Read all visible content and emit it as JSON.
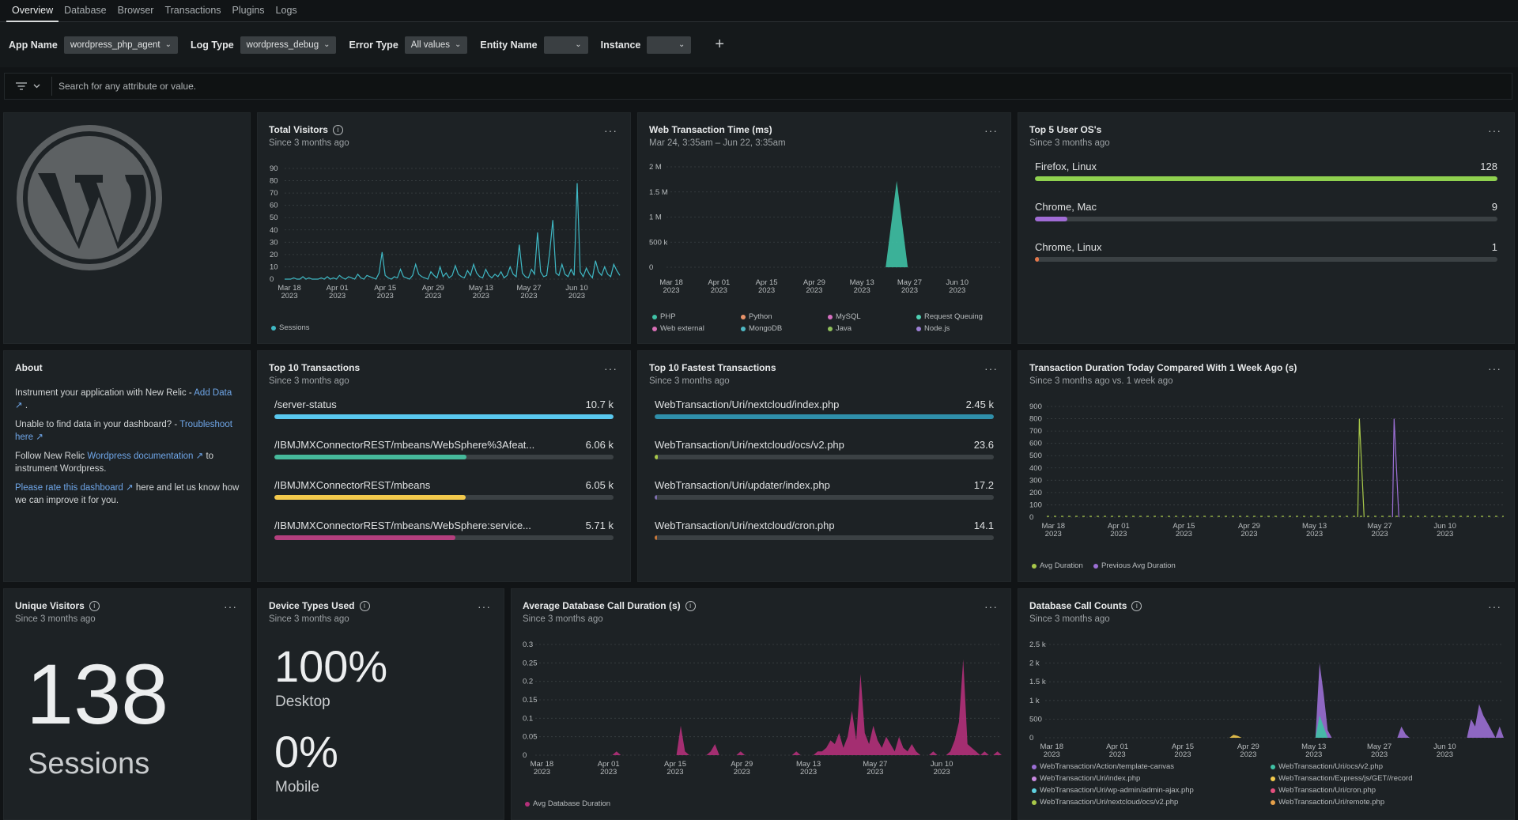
{
  "tabs": [
    "Overview",
    "Database",
    "Browser",
    "Transactions",
    "Plugins",
    "Logs"
  ],
  "filters": [
    {
      "label": "App Name",
      "value": "wordpress_php_agent"
    },
    {
      "label": "Log Type",
      "value": "wordpress_debug"
    },
    {
      "label": "Error Type",
      "value": "All values"
    },
    {
      "label": "Entity Name",
      "value": ""
    },
    {
      "label": "Instance",
      "value": ""
    }
  ],
  "search": {
    "placeholder": "Search for any attribute or value."
  },
  "icons": {
    "logo": "wordpress-logo-icon",
    "filter": "filter-icon",
    "add": "plus-icon"
  },
  "total_visitors": {
    "title": "Total Visitors",
    "subtitle": "Since 3 months ago",
    "chart_data": {
      "type": "line",
      "y_ticks": [
        0,
        10,
        20,
        30,
        40,
        50,
        60,
        70,
        80,
        90
      ],
      "ylim": [
        0,
        90
      ],
      "x_ticks": [
        "Mar 18, 2023",
        "Apr 01, 2023",
        "Apr 15, 2023",
        "Apr 29, 2023",
        "May 13, 2023",
        "May 27, 2023",
        "Jun 10, 2023"
      ],
      "series": [
        {
          "name": "Sessions",
          "color": "#3fb8c4",
          "values": [
            0,
            0,
            0,
            1,
            0,
            0,
            2,
            0,
            1,
            0,
            0,
            0,
            1,
            0,
            2,
            0,
            1,
            0,
            3,
            1,
            0,
            2,
            1,
            0,
            4,
            1,
            0,
            3,
            2,
            1,
            0,
            5,
            22,
            3,
            1,
            0,
            2,
            1,
            8,
            2,
            1,
            0,
            3,
            12,
            4,
            2,
            1,
            0,
            6,
            3,
            1,
            10,
            2,
            5,
            1,
            3,
            11,
            4,
            2,
            1,
            7,
            3,
            12,
            5,
            2,
            1,
            8,
            3,
            1,
            4,
            2,
            6,
            1,
            3,
            10,
            4,
            2,
            28,
            5,
            2,
            1,
            8,
            4,
            38,
            6,
            2,
            3,
            22,
            48,
            5,
            3,
            12,
            4,
            2,
            8,
            3,
            78,
            6,
            2,
            9,
            4,
            1,
            15,
            6,
            3,
            10,
            4,
            2,
            12,
            7,
            3
          ]
        }
      ]
    }
  },
  "web_txn_time": {
    "title": "Web Transaction Time (ms)",
    "subtitle": "Mar 24, 3:35am – Jun 22, 3:35am",
    "chart_data": {
      "type": "area",
      "y_ticks": [
        "0",
        "500 k",
        "1 M",
        "1.5 M",
        "2 M"
      ],
      "ylim": [
        0,
        2000000
      ],
      "x_ticks": [
        "Mar 18, 2023",
        "Apr 01, 2023",
        "Apr 15, 2023",
        "Apr 29, 2023",
        "May 13, 2023",
        "May 27, 2023",
        "Jun 10, 2023"
      ],
      "spike": {
        "x_fraction": 0.69,
        "value": 1720000,
        "color": "#3fc1a5"
      },
      "legend": [
        {
          "name": "PHP",
          "color": "#3fc1a5"
        },
        {
          "name": "Python",
          "color": "#e8936a"
        },
        {
          "name": "MySQL",
          "color": "#d56fc0"
        },
        {
          "name": "Request Queuing",
          "color": "#4fd1b4"
        },
        {
          "name": "Web external",
          "color": "#d86fb5"
        },
        {
          "name": "MongoDB",
          "color": "#4fb8c4"
        },
        {
          "name": "Java",
          "color": "#8fbf5a"
        },
        {
          "name": "Node.js",
          "color": "#9b7fd4"
        }
      ]
    }
  },
  "top_os": {
    "title": "Top 5 User OS's",
    "subtitle": "Since 3 months ago",
    "items": [
      {
        "label": "Firefox, Linux",
        "value": "128",
        "fraction": 1.0,
        "color": "#8fd14f"
      },
      {
        "label": "Chrome, Mac",
        "value": "9",
        "fraction": 0.07,
        "color": "#a06cd5"
      },
      {
        "label": "Chrome, Linux",
        "value": "1",
        "fraction": 0.008,
        "color": "#e5774a"
      }
    ]
  },
  "about": {
    "title": "About",
    "p1_text": "Instrument your application with New Relic - ",
    "p1_link": "Add Data",
    "p1_end": " .",
    "p2_text": "Unable to find data in your dashboard? - ",
    "p2_link": "Troubleshoot here",
    "p3_text": "Follow New Relic ",
    "p3_link": "Wordpress documentation",
    "p3_end": " to instrument Wordpress.",
    "p4_link": "Please rate this dashboard",
    "p4_end": " here and let us know how we can improve it for you."
  },
  "top_txns": {
    "title": "Top 10 Transactions",
    "subtitle": "Since 3 months ago",
    "items": [
      {
        "label": "/server-status",
        "value": "10.7 k",
        "fraction": 1.0,
        "color": "#59c8ef"
      },
      {
        "label": "/IBMJMXConnectorREST/mbeans/WebSphere%3Afeat...",
        "value": "6.06 k",
        "fraction": 0.566,
        "color": "#46b99b"
      },
      {
        "label": "/IBMJMXConnectorREST/mbeans",
        "value": "6.05 k",
        "fraction": 0.565,
        "color": "#f2c94c"
      },
      {
        "label": "/IBMJMXConnectorREST/mbeans/WebSphere:service...",
        "value": "5.71 k",
        "fraction": 0.534,
        "color": "#b43f7e"
      }
    ]
  },
  "fastest_txns": {
    "title": "Top 10 Fastest Transactions",
    "subtitle": "Since 3 months ago",
    "items": [
      {
        "label": "WebTransaction/Uri/nextcloud/index.php",
        "value": "2.45 k",
        "fraction": 1.0,
        "color": "#2f8faa"
      },
      {
        "label": "WebTransaction/Uri/nextcloud/ocs/v2.php",
        "value": "23.6",
        "fraction": 0.0096,
        "color": "#a8c84a"
      },
      {
        "label": "WebTransaction/Uri/updater/index.php",
        "value": "17.2",
        "fraction": 0.007,
        "color": "#7f6fb0"
      },
      {
        "label": "WebTransaction/Uri/nextcloud/cron.php",
        "value": "14.1",
        "fraction": 0.0058,
        "color": "#c8783a"
      }
    ]
  },
  "txn_duration": {
    "title": "Transaction Duration Today Compared With 1 Week Ago (s)",
    "subtitle": "Since 3 months ago vs. 1 week ago",
    "chart_data": {
      "type": "line",
      "y_ticks": [
        0,
        100,
        200,
        300,
        400,
        500,
        600,
        700,
        800,
        900
      ],
      "ylim": [
        0,
        900
      ],
      "x_ticks": [
        "Mar 18, 2023",
        "Apr 01, 2023",
        "Apr 15, 2023",
        "Apr 29, 2023",
        "May 13, 2023",
        "May 27, 2023",
        "Jun 10, 2023"
      ],
      "series": [
        {
          "name": "Avg Duration",
          "color": "#a8c84a",
          "spike_x_fraction": 0.684,
          "spike_value": 800
        },
        {
          "name": "Previous Avg Duration",
          "color": "#9b6fd4",
          "spike_x_fraction": 0.76,
          "spike_value": 800
        }
      ]
    }
  },
  "unique_visitors": {
    "title": "Unique Visitors",
    "subtitle": "Since 3 months ago",
    "value": "138",
    "unit": "Sessions"
  },
  "device_types": {
    "title": "Device Types Used",
    "subtitle": "Since 3 months ago",
    "items": [
      {
        "value": "100%",
        "label": "Desktop"
      },
      {
        "value": "0%",
        "label": "Mobile"
      }
    ]
  },
  "avg_db_call": {
    "title": "Average Database Call Duration (s)",
    "subtitle": "Since 3 months ago",
    "chart_data": {
      "type": "area",
      "y_ticks": [
        0,
        0.05,
        0.1,
        0.15,
        0.2,
        0.25,
        0.3
      ],
      "ylim": [
        0,
        0.3
      ],
      "x_ticks": [
        "Mar 18, 2023",
        "Apr 01, 2023",
        "Apr 15, 2023",
        "Apr 29, 2023",
        "May 13, 2023",
        "May 27, 2023",
        "Jun 10, 2023"
      ],
      "series": [
        {
          "name": "Avg Database Duration",
          "color": "#b4307a",
          "values": [
            0,
            0,
            0,
            0,
            0,
            0,
            0,
            0,
            0,
            0,
            0,
            0,
            0,
            0,
            0,
            0,
            0,
            0,
            0,
            0.01,
            0,
            0,
            0,
            0,
            0,
            0,
            0,
            0,
            0,
            0,
            0,
            0,
            0,
            0,
            0.08,
            0.01,
            0,
            0,
            0,
            0,
            0,
            0.01,
            0.03,
            0,
            0,
            0,
            0,
            0,
            0.01,
            0,
            0,
            0,
            0,
            0,
            0,
            0,
            0,
            0,
            0,
            0,
            0,
            0.01,
            0,
            0,
            0,
            0,
            0.01,
            0.01,
            0.02,
            0.04,
            0.03,
            0.06,
            0.02,
            0.05,
            0.12,
            0.04,
            0.22,
            0.06,
            0.03,
            0.08,
            0.04,
            0.02,
            0.05,
            0.03,
            0.01,
            0.05,
            0.02,
            0.01,
            0.03,
            0.01,
            0,
            0,
            0,
            0.01,
            0,
            0,
            0,
            0.01,
            0.04,
            0.09,
            0.26,
            0.03,
            0.02,
            0.01,
            0,
            0.01,
            0,
            0,
            0.01,
            0
          ]
        }
      ]
    }
  },
  "db_call_counts": {
    "title": "Database Call Counts",
    "subtitle": "Since 3 months ago",
    "chart_data": {
      "type": "area",
      "y_ticks": [
        "0",
        "500",
        "1 k",
        "1.5 k",
        "2 k",
        "2.5 k"
      ],
      "ylim": [
        0,
        2500
      ],
      "x_ticks": [
        "Mar 18, 2023",
        "Apr 01, 2023",
        "Apr 15, 2023",
        "Apr 29, 2023",
        "May 13, 2023",
        "May 27, 2023",
        "Jun 10, 2023"
      ],
      "series": [
        {
          "name": "WebTransaction/Action/template-canvas",
          "color": "#9b6fd4"
        },
        {
          "name": "WebTransaction/Uri/ocs/v2.php",
          "color": "#3fc1a5"
        },
        {
          "name": "WebTransaction/Uri/index.php",
          "color": "#c98ae0"
        },
        {
          "name": "WebTransaction/Express/js/GET//record",
          "color": "#f2c94c"
        },
        {
          "name": "WebTransaction/Uri/wp-admin/admin-ajax.php",
          "color": "#5fd1e0"
        },
        {
          "name": "WebTransaction/Uri/cron.php",
          "color": "#e54f7e"
        },
        {
          "name": "WebTransaction/Uri/nextcloud/ocs/v2.php",
          "color": "#a8c84a"
        },
        {
          "name": "WebTransaction/Uri/remote.php",
          "color": "#e5a04a"
        }
      ],
      "purple_values": [
        0,
        0,
        0,
        0,
        0,
        0,
        0,
        0,
        0,
        0,
        0,
        0,
        0,
        0,
        0,
        0,
        0,
        0,
        0,
        0,
        0,
        0,
        0,
        0,
        0,
        0,
        0,
        0,
        0,
        0,
        0,
        0,
        0,
        0,
        0,
        0,
        0,
        0,
        0,
        0,
        0,
        0,
        0,
        0,
        0,
        0,
        0,
        0,
        0,
        0,
        0,
        0,
        0,
        0,
        0,
        0,
        0,
        0,
        0,
        0,
        0,
        0,
        0,
        0,
        0,
        0,
        0,
        2000,
        1200,
        200,
        0,
        0,
        0,
        0,
        0,
        0,
        0,
        0,
        0,
        0,
        0,
        0,
        0,
        0,
        0,
        0,
        0,
        300,
        100,
        0,
        0,
        0,
        0,
        0,
        0,
        0,
        0,
        0,
        0,
        0,
        0,
        0,
        0,
        0,
        500,
        300,
        900,
        600,
        400,
        200,
        0,
        300,
        0
      ],
      "teal_values": [
        0,
        0,
        0,
        0,
        0,
        0,
        0,
        0,
        0,
        0,
        0,
        0,
        0,
        0,
        0,
        0,
        0,
        0,
        0,
        0,
        0,
        0,
        0,
        0,
        0,
        0,
        0,
        0,
        0,
        0,
        0,
        0,
        0,
        0,
        0,
        0,
        0,
        0,
        0,
        0,
        0,
        0,
        0,
        0,
        0,
        0,
        0,
        0,
        0,
        0,
        0,
        0,
        0,
        0,
        0,
        0,
        0,
        0,
        0,
        0,
        0,
        0,
        0,
        0,
        0,
        0,
        0,
        600,
        300,
        0,
        0,
        0,
        0,
        0,
        0,
        0,
        0,
        0,
        0,
        0,
        0,
        0,
        0,
        0,
        0,
        0,
        0,
        0,
        0,
        0,
        0,
        0,
        0,
        0,
        0,
        0,
        0,
        0,
        0,
        0,
        0,
        0,
        0,
        0,
        0,
        0,
        0,
        0,
        0,
        0,
        0,
        0,
        0
      ],
      "yellow_values": [
        0,
        0,
        0,
        0,
        0,
        0,
        0,
        0,
        0,
        0,
        0,
        0,
        0,
        0,
        0,
        0,
        0,
        0,
        0,
        0,
        0,
        0,
        0,
        0,
        0,
        0,
        0,
        0,
        0,
        0,
        0,
        0,
        0,
        0,
        0,
        0,
        0,
        0,
        0,
        0,
        0,
        0,
        0,
        0,
        0,
        0,
        80,
        50,
        0,
        0,
        0,
        0,
        0,
        0,
        0,
        0,
        0,
        0,
        0,
        0,
        0,
        0,
        0,
        0,
        0,
        0,
        0,
        0,
        0,
        0,
        0,
        0,
        0,
        0,
        0,
        0,
        0,
        0,
        0,
        0,
        0,
        0,
        0,
        0,
        0,
        0,
        0,
        0,
        0,
        0,
        0,
        0,
        0,
        0,
        0,
        0,
        0,
        0,
        0,
        0,
        0,
        0,
        0,
        0,
        0,
        0,
        0,
        0,
        0,
        0,
        0,
        0,
        0
      ]
    }
  }
}
